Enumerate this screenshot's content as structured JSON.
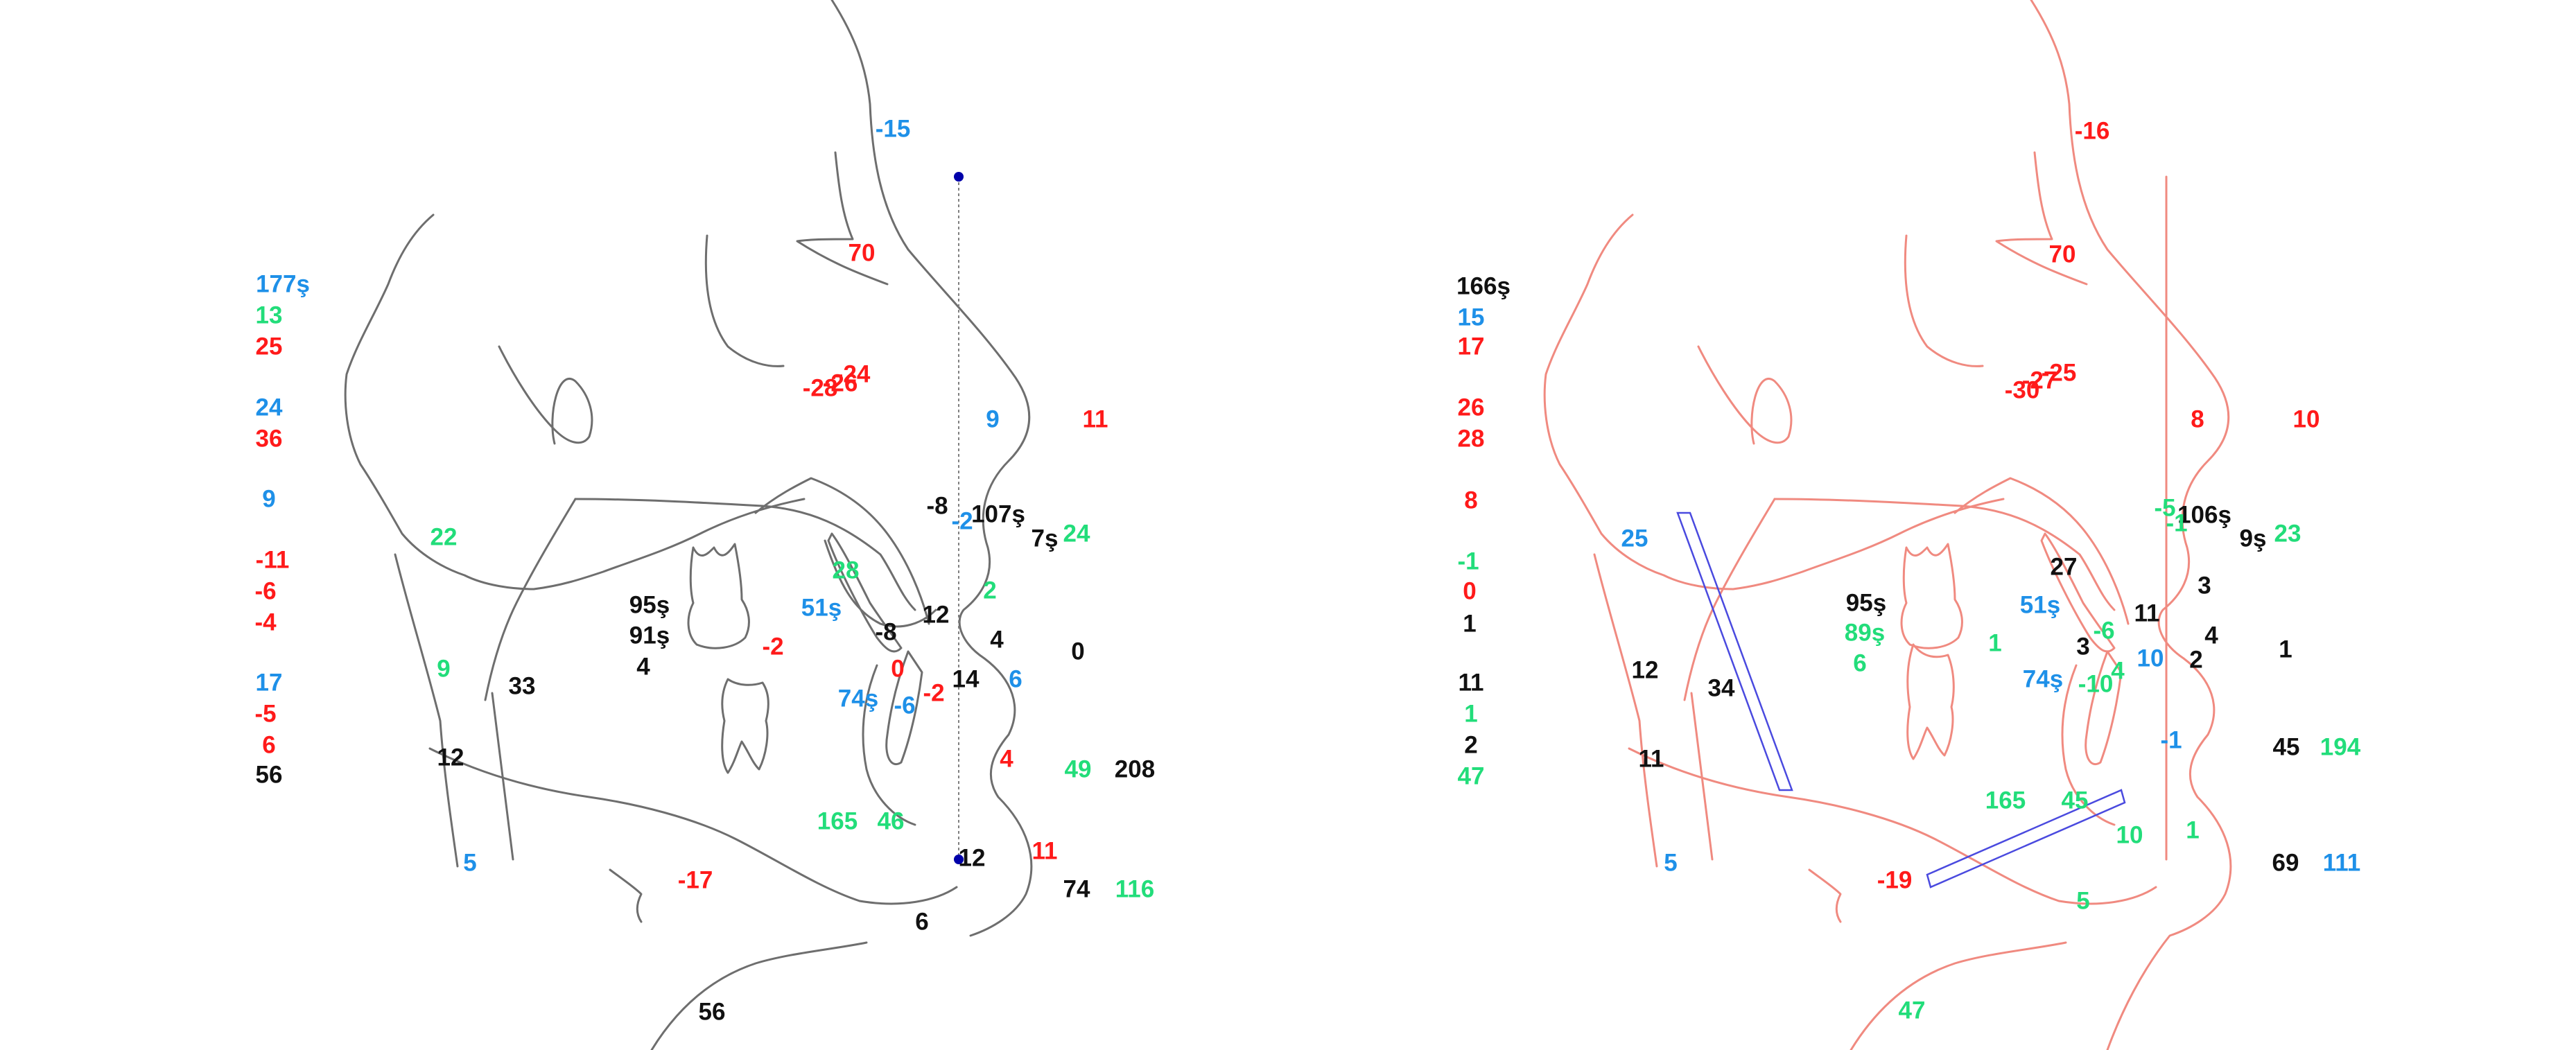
{
  "colors": {
    "blue": "#1e90e8",
    "green": "#22dd7a",
    "red": "#ff1a1a",
    "black": "#111111",
    "left_trace": "#6e6e6e",
    "right_trace": "#f08a80",
    "reference_line": "#4a4adf",
    "landmark_dot": "#0000aa"
  },
  "left_panel": {
    "column_values": [
      {
        "text": "177ş",
        "color": "blue"
      },
      {
        "text": "13",
        "color": "green"
      },
      {
        "text": "25",
        "color": "red"
      },
      {
        "text": "24",
        "color": "blue"
      },
      {
        "text": "36",
        "color": "red"
      },
      {
        "text": "9",
        "color": "blue"
      },
      {
        "text": "-11",
        "color": "red"
      },
      {
        "text": "-6",
        "color": "red"
      },
      {
        "text": "-4",
        "color": "red"
      },
      {
        "text": "17",
        "color": "blue"
      },
      {
        "text": "-5",
        "color": "red"
      },
      {
        "text": "6",
        "color": "red"
      },
      {
        "text": "56",
        "color": "black"
      }
    ],
    "tracing_values": [
      {
        "text": "-15",
        "color": "blue"
      },
      {
        "text": "70",
        "color": "red"
      },
      {
        "text": "-24",
        "color": "red"
      },
      {
        "text": "-26",
        "color": "red"
      },
      {
        "text": "-28",
        "color": "red"
      },
      {
        "text": "9",
        "color": "blue"
      },
      {
        "text": "11",
        "color": "red"
      },
      {
        "text": "22",
        "color": "green"
      },
      {
        "text": "-8",
        "color": "black"
      },
      {
        "text": "107ş",
        "color": "black"
      },
      {
        "text": "-2",
        "color": "blue"
      },
      {
        "text": "7ş",
        "color": "black"
      },
      {
        "text": "24",
        "color": "green"
      },
      {
        "text": "28",
        "color": "green"
      },
      {
        "text": "2",
        "color": "green"
      },
      {
        "text": "95ş",
        "color": "black"
      },
      {
        "text": "91ş",
        "color": "black"
      },
      {
        "text": "4",
        "color": "black"
      },
      {
        "text": "51ş",
        "color": "blue"
      },
      {
        "text": "12",
        "color": "black"
      },
      {
        "text": "-8",
        "color": "black"
      },
      {
        "text": "4",
        "color": "black"
      },
      {
        "text": "0",
        "color": "black"
      },
      {
        "text": "-2",
        "color": "red"
      },
      {
        "text": "0",
        "color": "red"
      },
      {
        "text": "9",
        "color": "green"
      },
      {
        "text": "33",
        "color": "black"
      },
      {
        "text": "74ş",
        "color": "blue"
      },
      {
        "text": "-6",
        "color": "blue"
      },
      {
        "text": "-2",
        "color": "red"
      },
      {
        "text": "14",
        "color": "black"
      },
      {
        "text": "6",
        "color": "blue"
      },
      {
        "text": "12",
        "color": "black"
      },
      {
        "text": "4",
        "color": "red"
      },
      {
        "text": "49",
        "color": "green"
      },
      {
        "text": "208",
        "color": "black"
      },
      {
        "text": "165",
        "color": "green"
      },
      {
        "text": "46",
        "color": "green"
      },
      {
        "text": "5",
        "color": "blue"
      },
      {
        "text": "-17",
        "color": "red"
      },
      {
        "text": "12",
        "color": "black"
      },
      {
        "text": "11",
        "color": "red"
      },
      {
        "text": "74",
        "color": "black"
      },
      {
        "text": "116",
        "color": "green"
      },
      {
        "text": "6",
        "color": "black"
      },
      {
        "text": "56",
        "color": "black"
      }
    ]
  },
  "right_panel": {
    "column_values": [
      {
        "text": "166ş",
        "color": "black"
      },
      {
        "text": "15",
        "color": "blue"
      },
      {
        "text": "17",
        "color": "red"
      },
      {
        "text": "26",
        "color": "red"
      },
      {
        "text": "28",
        "color": "red"
      },
      {
        "text": "8",
        "color": "red"
      },
      {
        "text": "-1",
        "color": "green"
      },
      {
        "text": "0",
        "color": "red"
      },
      {
        "text": "1",
        "color": "black"
      },
      {
        "text": "11",
        "color": "black"
      },
      {
        "text": "1",
        "color": "green"
      },
      {
        "text": "2",
        "color": "black"
      },
      {
        "text": "47",
        "color": "green"
      }
    ],
    "tracing_values": [
      {
        "text": "-16",
        "color": "red"
      },
      {
        "text": "70",
        "color": "red"
      },
      {
        "text": "-25",
        "color": "red"
      },
      {
        "text": "-27",
        "color": "red"
      },
      {
        "text": "-30",
        "color": "red"
      },
      {
        "text": "8",
        "color": "red"
      },
      {
        "text": "10",
        "color": "red"
      },
      {
        "text": "25",
        "color": "blue"
      },
      {
        "text": "-5",
        "color": "green"
      },
      {
        "text": "106ş",
        "color": "black"
      },
      {
        "text": "-1",
        "color": "green"
      },
      {
        "text": "9ş",
        "color": "black"
      },
      {
        "text": "23",
        "color": "green"
      },
      {
        "text": "27",
        "color": "black"
      },
      {
        "text": "3",
        "color": "black"
      },
      {
        "text": "95ş",
        "color": "black"
      },
      {
        "text": "89ş",
        "color": "green"
      },
      {
        "text": "6",
        "color": "green"
      },
      {
        "text": "51ş",
        "color": "blue"
      },
      {
        "text": "11",
        "color": "black"
      },
      {
        "text": "1",
        "color": "green"
      },
      {
        "text": "-6",
        "color": "green"
      },
      {
        "text": "3",
        "color": "black"
      },
      {
        "text": "4",
        "color": "black"
      },
      {
        "text": "10",
        "color": "blue"
      },
      {
        "text": "2",
        "color": "black"
      },
      {
        "text": "1",
        "color": "black"
      },
      {
        "text": "12",
        "color": "black"
      },
      {
        "text": "34",
        "color": "black"
      },
      {
        "text": "74ş",
        "color": "blue"
      },
      {
        "text": "-10",
        "color": "green"
      },
      {
        "text": "4",
        "color": "green"
      },
      {
        "text": "11",
        "color": "black"
      },
      {
        "text": "-1",
        "color": "blue"
      },
      {
        "text": "45",
        "color": "black"
      },
      {
        "text": "194",
        "color": "green"
      },
      {
        "text": "165",
        "color": "green"
      },
      {
        "text": "45",
        "color": "green"
      },
      {
        "text": "10",
        "color": "green"
      },
      {
        "text": "1",
        "color": "green"
      },
      {
        "text": "5",
        "color": "blue"
      },
      {
        "text": "-19",
        "color": "red"
      },
      {
        "text": "5",
        "color": "green"
      },
      {
        "text": "69",
        "color": "black"
      },
      {
        "text": "111",
        "color": "blue"
      },
      {
        "text": "47",
        "color": "green"
      }
    ]
  }
}
